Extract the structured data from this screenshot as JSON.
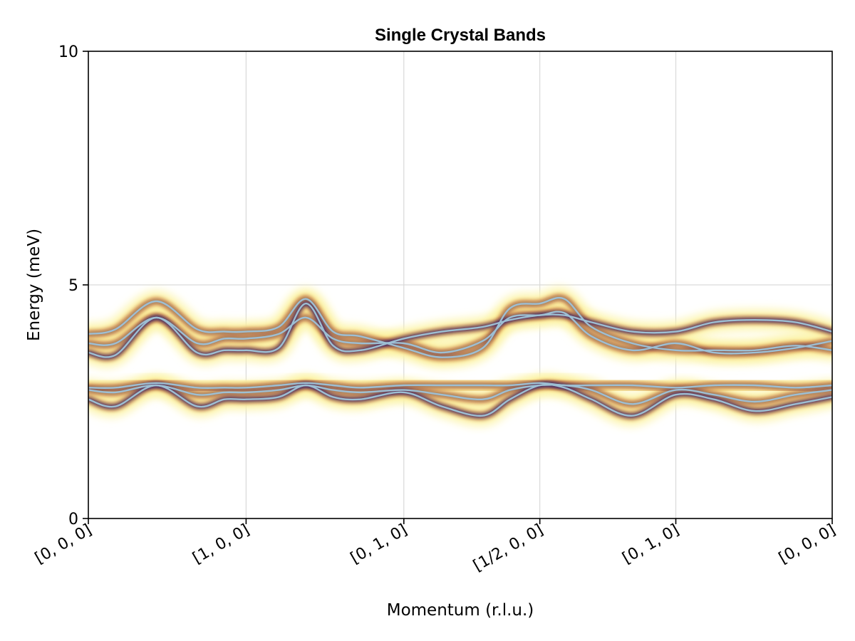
{
  "chart_data": {
    "type": "line",
    "title": "Single Crystal Bands",
    "xlabel": "Momentum (r.l.u.)",
    "ylabel": "Energy (meV)",
    "ylim": [
      0,
      10
    ],
    "yticks": [
      {
        "value": 0,
        "label": "0"
      },
      {
        "value": 5,
        "label": "5"
      },
      {
        "value": 10,
        "label": "10"
      }
    ],
    "xlim": [
      0,
      5.47
    ],
    "xticks": [
      {
        "value": 0,
        "label": "[0, 0, 0]"
      },
      {
        "value": 1.16,
        "label": "[1, 0, 0]"
      },
      {
        "value": 2.32,
        "label": "[0, 1, 0]"
      },
      {
        "value": 3.32,
        "label": "[1/2, 0, 0]"
      },
      {
        "value": 4.32,
        "label": "[0, 1, 0]"
      },
      {
        "value": 5.47,
        "label": "[0, 0, 0]"
      }
    ],
    "grid": true,
    "colors": {
      "curve": "#9dbfd3",
      "intensity_low": "#fcf4a8",
      "intensity_mid": "#f5a33a",
      "intensity_high": "#2a1a6b"
    },
    "series": [
      {
        "x": [
          0,
          0.2,
          0.5,
          0.8,
          1.0,
          1.16,
          1.4,
          1.6,
          1.8,
          2.0,
          2.32,
          2.6,
          2.9,
          3.1,
          3.32,
          3.5,
          3.7,
          4.0,
          4.32,
          4.6,
          4.9,
          5.2,
          5.47
        ],
        "y": [
          3.55,
          3.5,
          4.3,
          3.55,
          3.6,
          3.6,
          3.65,
          4.6,
          3.7,
          3.6,
          3.85,
          4.0,
          4.1,
          4.25,
          4.35,
          4.35,
          4.2,
          4.0,
          4.0,
          4.2,
          4.25,
          4.2,
          4.0
        ]
      },
      {
        "x": [
          0,
          0.2,
          0.5,
          0.8,
          1.0,
          1.16,
          1.4,
          1.6,
          1.8,
          2.0,
          2.32,
          2.6,
          2.9,
          3.1,
          3.32,
          3.5,
          3.7,
          4.0,
          4.32,
          4.6,
          4.9,
          5.2,
          5.47
        ],
        "y": [
          3.75,
          3.75,
          4.3,
          3.75,
          3.85,
          3.85,
          3.95,
          4.3,
          3.85,
          3.75,
          3.75,
          3.55,
          3.8,
          4.3,
          4.35,
          4.4,
          3.9,
          3.6,
          3.75,
          3.55,
          3.55,
          3.65,
          3.8
        ]
      },
      {
        "x": [
          0,
          0.2,
          0.5,
          0.8,
          1.0,
          1.16,
          1.4,
          1.6,
          1.8,
          2.0,
          2.32,
          2.6,
          2.9,
          3.1,
          3.32,
          3.5,
          3.7,
          4.0,
          4.32,
          4.6,
          4.9,
          5.2,
          5.47
        ],
        "y": [
          3.95,
          4.05,
          4.65,
          4.05,
          4.0,
          4.0,
          4.1,
          4.7,
          4.0,
          3.9,
          3.65,
          3.45,
          3.65,
          4.5,
          4.6,
          4.7,
          4.1,
          3.75,
          3.6,
          3.6,
          3.6,
          3.7,
          3.6
        ]
      },
      {
        "x": [
          0,
          0.2,
          0.5,
          0.8,
          1.0,
          1.16,
          1.4,
          1.6,
          1.8,
          2.0,
          2.32,
          2.6,
          2.9,
          3.1,
          3.32,
          3.5,
          3.7,
          4.0,
          4.32,
          4.6,
          4.9,
          5.2,
          5.47
        ],
        "y": [
          2.55,
          2.4,
          2.85,
          2.4,
          2.55,
          2.55,
          2.6,
          2.85,
          2.6,
          2.55,
          2.7,
          2.4,
          2.2,
          2.55,
          2.85,
          2.8,
          2.55,
          2.2,
          2.65,
          2.55,
          2.3,
          2.45,
          2.6
        ]
      },
      {
        "x": [
          0,
          0.2,
          0.5,
          0.8,
          1.0,
          1.16,
          1.4,
          1.6,
          1.8,
          2.0,
          2.32,
          2.6,
          2.9,
          3.1,
          3.32,
          3.5,
          3.7,
          4.0,
          4.32,
          4.6,
          4.9,
          5.2,
          5.47
        ],
        "y": [
          2.75,
          2.7,
          2.85,
          2.65,
          2.7,
          2.7,
          2.75,
          2.85,
          2.75,
          2.7,
          2.75,
          2.65,
          2.55,
          2.75,
          2.85,
          2.85,
          2.75,
          2.45,
          2.75,
          2.65,
          2.5,
          2.65,
          2.75
        ]
      },
      {
        "x": [
          0,
          0.2,
          0.5,
          0.8,
          1.0,
          1.16,
          1.4,
          1.6,
          1.8,
          2.0,
          2.32,
          2.6,
          2.9,
          3.1,
          3.32,
          3.5,
          3.7,
          4.0,
          4.32,
          4.6,
          4.9,
          5.2,
          5.47
        ],
        "y": [
          2.8,
          2.8,
          2.9,
          2.8,
          2.8,
          2.8,
          2.85,
          2.9,
          2.85,
          2.8,
          2.85,
          2.85,
          2.85,
          2.85,
          2.9,
          2.85,
          2.85,
          2.85,
          2.8,
          2.85,
          2.85,
          2.8,
          2.85
        ]
      }
    ]
  }
}
